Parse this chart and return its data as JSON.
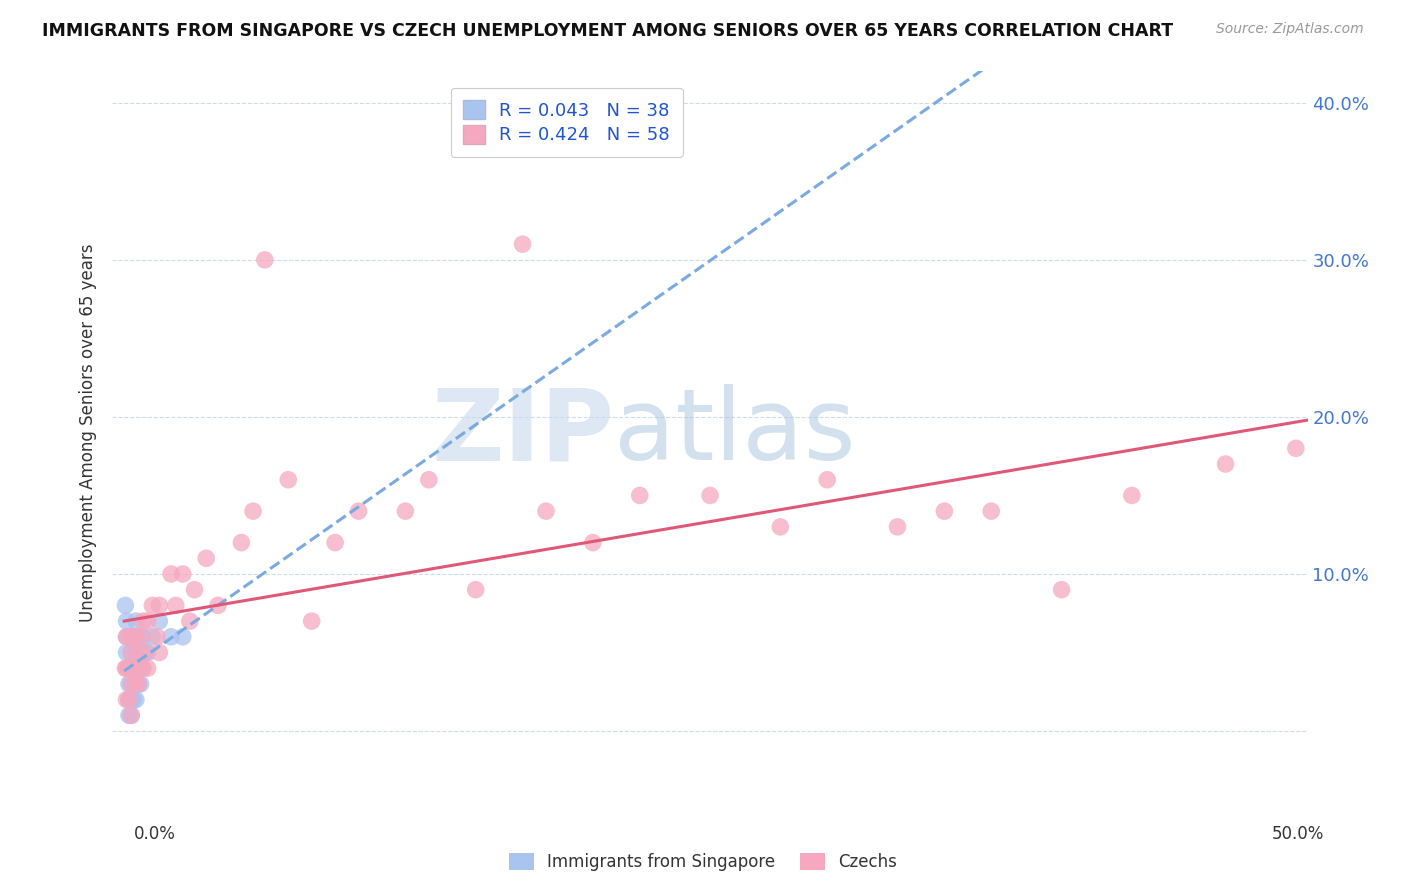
{
  "title": "IMMIGRANTS FROM SINGAPORE VS CZECH UNEMPLOYMENT AMONG SENIORS OVER 65 YEARS CORRELATION CHART",
  "source": "Source: ZipAtlas.com",
  "ylabel": "Unemployment Among Seniors over 65 years",
  "xlim": [
    -0.005,
    0.505
  ],
  "ylim": [
    -0.04,
    0.42
  ],
  "xtick_left_label": "0.0%",
  "xtick_right_label": "50.0%",
  "yticks": [
    0.0,
    0.1,
    0.2,
    0.3,
    0.4
  ],
  "ytick_labels": [
    "",
    "10.0%",
    "20.0%",
    "30.0%",
    "40.0%"
  ],
  "blue_R": 0.043,
  "blue_N": 38,
  "pink_R": 0.424,
  "pink_N": 58,
  "blue_color": "#aac4f0",
  "pink_color": "#f5a8c0",
  "blue_line_color": "#7aaae0",
  "pink_line_color": "#e05878",
  "legend_label_blue": "Immigrants from Singapore",
  "legend_label_pink": "Czechs",
  "watermark_zip": "ZIP",
  "watermark_atlas": "atlas",
  "grid_color": "#c8d8e8",
  "blue_x": [
    0.0005,
    0.001,
    0.001,
    0.001,
    0.002,
    0.002,
    0.002,
    0.002,
    0.002,
    0.003,
    0.003,
    0.003,
    0.003,
    0.003,
    0.003,
    0.004,
    0.004,
    0.004,
    0.004,
    0.004,
    0.005,
    0.005,
    0.005,
    0.005,
    0.005,
    0.006,
    0.006,
    0.006,
    0.007,
    0.007,
    0.008,
    0.008,
    0.009,
    0.01,
    0.012,
    0.015,
    0.02,
    0.025
  ],
  "blue_y": [
    0.08,
    0.07,
    0.06,
    0.05,
    0.04,
    0.04,
    0.03,
    0.02,
    0.01,
    0.06,
    0.05,
    0.04,
    0.03,
    0.02,
    0.01,
    0.06,
    0.05,
    0.04,
    0.03,
    0.02,
    0.07,
    0.05,
    0.04,
    0.03,
    0.02,
    0.06,
    0.04,
    0.03,
    0.05,
    0.03,
    0.06,
    0.04,
    0.05,
    0.05,
    0.06,
    0.07,
    0.06,
    0.06
  ],
  "pink_x": [
    0.0005,
    0.001,
    0.001,
    0.001,
    0.002,
    0.002,
    0.002,
    0.003,
    0.003,
    0.003,
    0.004,
    0.004,
    0.005,
    0.005,
    0.006,
    0.006,
    0.007,
    0.007,
    0.008,
    0.008,
    0.009,
    0.01,
    0.01,
    0.012,
    0.014,
    0.015,
    0.015,
    0.02,
    0.022,
    0.025,
    0.028,
    0.03,
    0.035,
    0.04,
    0.05,
    0.055,
    0.06,
    0.07,
    0.08,
    0.09,
    0.1,
    0.12,
    0.13,
    0.15,
    0.17,
    0.18,
    0.2,
    0.22,
    0.25,
    0.28,
    0.3,
    0.33,
    0.35,
    0.37,
    0.4,
    0.43,
    0.47,
    0.5
  ],
  "pink_y": [
    0.04,
    0.06,
    0.04,
    0.02,
    0.06,
    0.04,
    0.02,
    0.05,
    0.03,
    0.01,
    0.06,
    0.04,
    0.06,
    0.03,
    0.05,
    0.03,
    0.06,
    0.04,
    0.07,
    0.04,
    0.05,
    0.07,
    0.04,
    0.08,
    0.06,
    0.08,
    0.05,
    0.1,
    0.08,
    0.1,
    0.07,
    0.09,
    0.11,
    0.08,
    0.12,
    0.14,
    0.3,
    0.16,
    0.07,
    0.12,
    0.14,
    0.14,
    0.16,
    0.09,
    0.31,
    0.14,
    0.12,
    0.15,
    0.15,
    0.13,
    0.16,
    0.13,
    0.14,
    0.14,
    0.09,
    0.15,
    0.17,
    0.18
  ]
}
